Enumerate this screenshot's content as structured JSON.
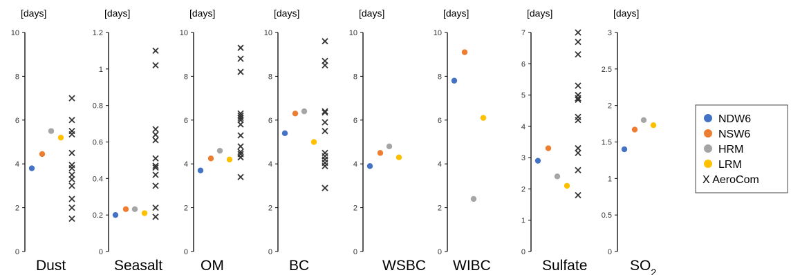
{
  "chart_data": {
    "type": "scatter",
    "unit_label": "[days]",
    "series": [
      {
        "name": "NDW6",
        "marker": "dot",
        "color": "#4472C4"
      },
      {
        "name": "NSW6",
        "marker": "dot",
        "color": "#ED7D31"
      },
      {
        "name": "HRM",
        "marker": "dot",
        "color": "#A5A5A5"
      },
      {
        "name": "LRM",
        "marker": "dot",
        "color": "#FFC000"
      },
      {
        "name": "AeroCom",
        "marker": "x",
        "color": "#333333"
      }
    ],
    "panels": [
      {
        "label": "Dust",
        "label_sub": "",
        "ylim": [
          0,
          10
        ],
        "ticks": [
          "0",
          "2",
          "4",
          "6",
          "8",
          "10"
        ],
        "values": {
          "NDW6": 3.8,
          "NSW6": 4.45,
          "HRM": 5.5,
          "LRM": 5.2
        },
        "aerocom": [
          7.0,
          6.0,
          5.5,
          5.35,
          4.5,
          3.95,
          3.8,
          3.5,
          3.3,
          3.0,
          2.4,
          2.0,
          1.5
        ]
      },
      {
        "label": "Seasalt",
        "label_sub": "",
        "ylim": [
          0,
          1.2
        ],
        "ticks": [
          "0",
          "0.2",
          "0.4",
          "0.6",
          "0.8",
          "1",
          "1.2"
        ],
        "values": {
          "NDW6": 0.2,
          "NSW6": 0.232,
          "HRM": 0.232,
          "LRM": 0.21
        },
        "aerocom": [
          1.1,
          1.02,
          0.67,
          0.64,
          0.61,
          0.51,
          0.47,
          0.46,
          0.42,
          0.36,
          0.24,
          0.19
        ]
      },
      {
        "label": "OM",
        "label_sub": "",
        "ylim": [
          0,
          10
        ],
        "ticks": [
          "0",
          "2",
          "4",
          "6",
          "8",
          "10"
        ],
        "values": {
          "NDW6": 3.7,
          "NSW6": 4.25,
          "HRM": 4.6,
          "LRM": 4.2
        },
        "aerocom": [
          9.3,
          8.8,
          8.2,
          6.3,
          6.2,
          6.1,
          6.0,
          5.8,
          5.3,
          4.8,
          4.55,
          4.45,
          4.3,
          3.4
        ]
      },
      {
        "label": "BC",
        "label_sub": "",
        "ylim": [
          0,
          10
        ],
        "ticks": [
          "0",
          "2",
          "4",
          "6",
          "8",
          "10"
        ],
        "values": {
          "NDW6": 5.4,
          "NSW6": 6.3,
          "HRM": 6.4,
          "LRM": 5.0
        },
        "aerocom": [
          9.6,
          8.7,
          8.5,
          6.4,
          6.35,
          5.9,
          5.5,
          4.5,
          4.35,
          4.2,
          4.05,
          3.9,
          2.9
        ]
      },
      {
        "label": "WSBC",
        "label_sub": "",
        "ylim": [
          0,
          10
        ],
        "ticks": [
          "0",
          "2",
          "4",
          "6",
          "8",
          "10"
        ],
        "values": {
          "NDW6": 3.9,
          "NSW6": 4.5,
          "HRM": 4.8,
          "LRM": 4.3
        },
        "aerocom": []
      },
      {
        "label": "WIBC",
        "label_sub": "",
        "ylim": [
          0,
          10
        ],
        "ticks": [
          "0",
          "2",
          "4",
          "6",
          "8",
          "10"
        ],
        "values": {
          "NDW6": 7.8,
          "NSW6": 9.1,
          "HRM": 2.4,
          "LRM": 6.1
        },
        "aerocom": []
      },
      {
        "label": "Sulfate",
        "label_sub": "",
        "ylim": [
          0,
          7
        ],
        "ticks": [
          "0",
          "1",
          "2",
          "3",
          "4",
          "5",
          "6",
          "7"
        ],
        "values": {
          "NDW6": 2.9,
          "NSW6": 3.3,
          "HRM": 2.4,
          "LRM": 2.1
        },
        "aerocom": [
          7.0,
          6.7,
          6.3,
          5.3,
          5.0,
          4.9,
          4.85,
          4.3,
          4.2,
          3.3,
          3.15,
          2.6,
          1.8
        ]
      },
      {
        "label": "SO",
        "label_sub": "2",
        "ylim": [
          0,
          3
        ],
        "ticks": [
          "0",
          "0.5",
          "1",
          "1.5",
          "2",
          "2.5",
          "3"
        ],
        "values": {
          "NDW6": 1.4,
          "NSW6": 1.67,
          "HRM": 1.8,
          "LRM": 1.73
        },
        "aerocom": []
      }
    ],
    "legend": {
      "position": "right",
      "aerocom_prefix": "X"
    }
  }
}
